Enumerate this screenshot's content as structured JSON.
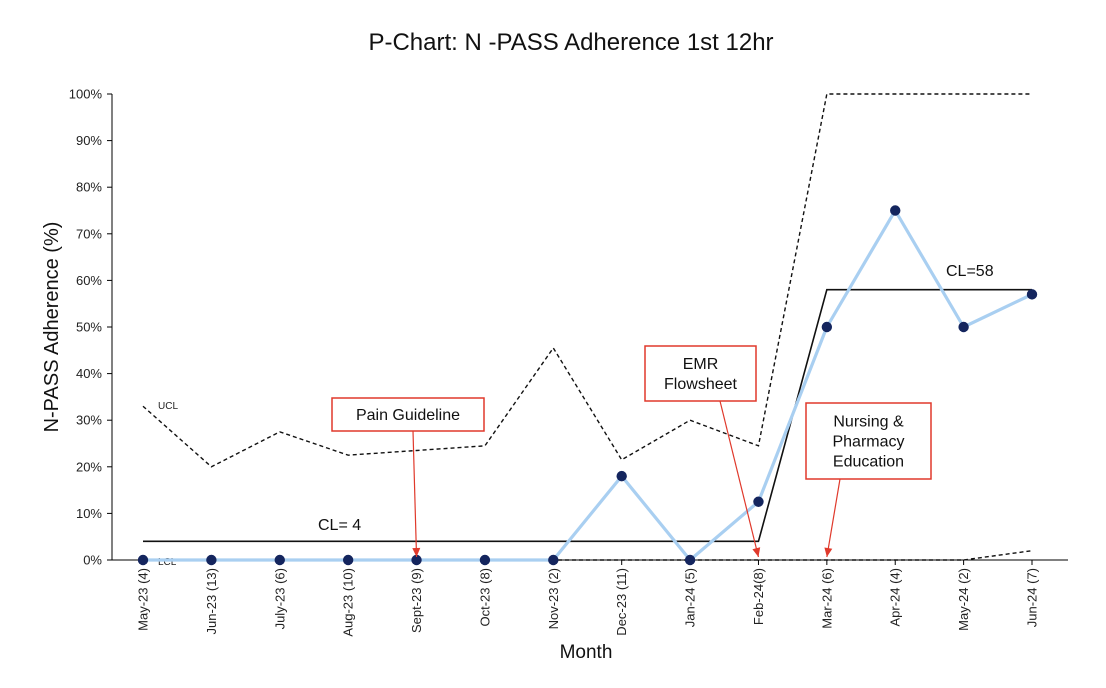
{
  "chart_data": {
    "type": "line",
    "title": "P-Chart: N -PASS Adherence 1st 12hr",
    "xlabel": "Month",
    "ylabel": "N-PASS Adherence (%)",
    "ylim": [
      0,
      100
    ],
    "y_ticks": [
      "0%",
      "10%",
      "20%",
      "30%",
      "40%",
      "50%",
      "60%",
      "70%",
      "80%",
      "90%",
      "100%"
    ],
    "categories": [
      "May-23 (4)",
      "Jun-23 (13)",
      "July-23 (6)",
      "Aug-23 (10)",
      "Sept-23 (9)",
      "Oct-23 (8)",
      "Nov-23 (2)",
      "Dec-23 (11)",
      "Jan-24 (5)",
      "Feb-24(8)",
      "Mar-24 (6)",
      "Apr-24 (4)",
      "May-24 (2)",
      "Jun-24 (7)"
    ],
    "series": [
      {
        "values": [
          0,
          0,
          0,
          0,
          0,
          0,
          0,
          18,
          0,
          12.5,
          50,
          75,
          50,
          57
        ],
        "color": "#a9cff1",
        "marker_color": "#14255e"
      }
    ],
    "ucl": {
      "label": "UCL",
      "values": [
        33,
        20,
        27.5,
        22.5,
        23.5,
        24.5,
        45.5,
        21.5,
        30,
        24.5,
        100,
        100,
        100,
        100
      ]
    },
    "lcl": {
      "label": "LCL",
      "values": [
        0,
        0,
        0,
        0,
        0,
        0,
        0,
        0,
        0,
        0,
        0,
        0,
        0,
        2
      ]
    },
    "center_line": [
      {
        "label": "CL= 4",
        "value": 4,
        "from": 0,
        "to": 9
      },
      {
        "label": "CL=58",
        "value": 58,
        "from": 10,
        "to": 13
      }
    ],
    "annotations": [
      {
        "text": [
          "Pain Guideline"
        ],
        "target_index": 4
      },
      {
        "text": [
          "EMR",
          "Flowsheet"
        ],
        "target_index": 9
      },
      {
        "text": [
          "Nursing &",
          "Pharmacy",
          "Education"
        ],
        "target_index": 10
      }
    ],
    "annotation_color": "#e0392b",
    "grid": false
  }
}
